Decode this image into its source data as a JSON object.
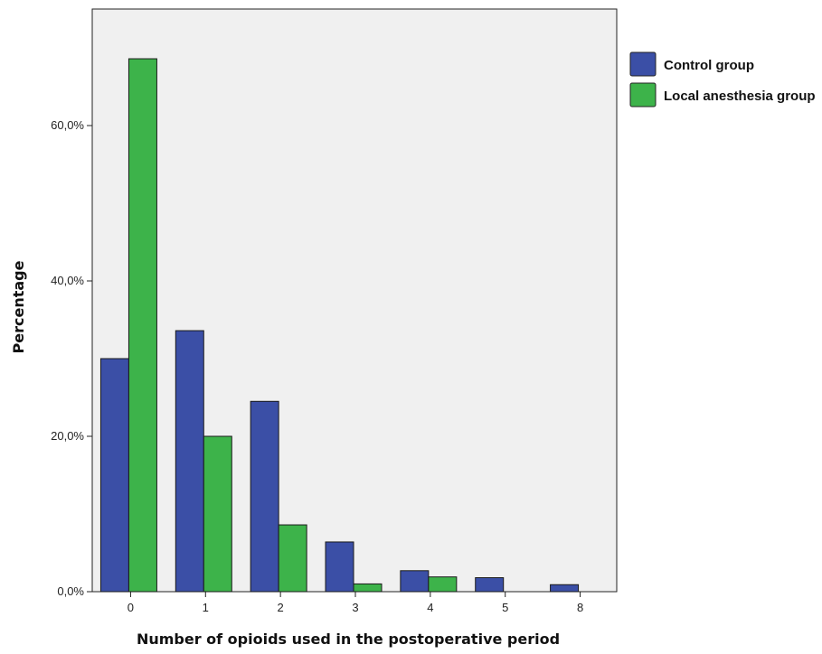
{
  "chart_data": {
    "type": "bar",
    "title": "",
    "xlabel": "Number of opioids used in the postoperative period",
    "ylabel": "Percentage",
    "categories": [
      "0",
      "1",
      "2",
      "3",
      "4",
      "5",
      "8"
    ],
    "series": [
      {
        "name": "Control group",
        "color": "#3b4fa6",
        "values": [
          30.0,
          33.6,
          24.5,
          6.4,
          2.7,
          1.8,
          0.9
        ]
      },
      {
        "name": "Local anesthesia group",
        "color": "#3db34a",
        "values": [
          68.6,
          20.0,
          8.6,
          1.0,
          1.9,
          0,
          0
        ]
      }
    ],
    "ylim": [
      0,
      75
    ],
    "yticks": [
      {
        "value": 0,
        "label": "0,0%"
      },
      {
        "value": 20,
        "label": "20,0%"
      },
      {
        "value": 40,
        "label": "40,0%"
      },
      {
        "value": 60,
        "label": "60,0%"
      }
    ],
    "grid": false,
    "legend_position": "right-top",
    "background_color": "#f0f0f0"
  }
}
